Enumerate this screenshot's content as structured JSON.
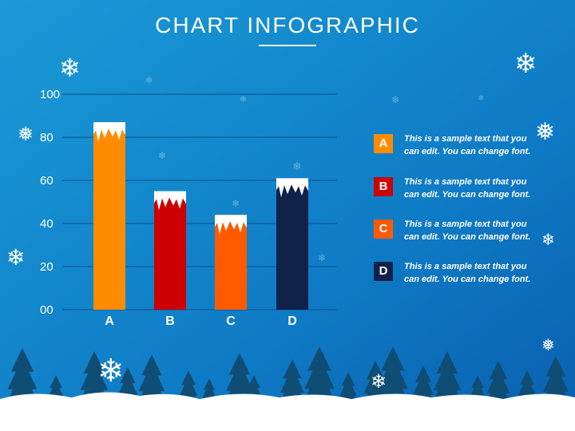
{
  "header": {
    "title": "CHART INFOGRAPHIC"
  },
  "chart_data": {
    "type": "bar",
    "categories": [
      "A",
      "B",
      "C",
      "D"
    ],
    "values": [
      87,
      55,
      44,
      61
    ],
    "colors": [
      "#ff8c00",
      "#cc0000",
      "#ff5a00",
      "#10214a"
    ],
    "ylim": [
      0,
      100
    ],
    "yticks": [
      "00",
      "20",
      "40",
      "60",
      "80",
      "100"
    ],
    "ytick_values": [
      0,
      20,
      40,
      60,
      80,
      100
    ],
    "grid": true,
    "xlabel": "",
    "ylabel": ""
  },
  "legend": [
    {
      "letter": "A",
      "color": "#ff8c00",
      "line1": "This is a sample text that you",
      "line2": "can edit. You can change font."
    },
    {
      "letter": "B",
      "color": "#cc0000",
      "line1": "This is a sample text that you",
      "line2": "can edit. You can change font."
    },
    {
      "letter": "C",
      "color": "#ff5a00",
      "line1": "This is a sample text that you",
      "line2": "can edit. You can change font."
    },
    {
      "letter": "D",
      "color": "#10214a",
      "line1": "This is a sample text that you",
      "line2": "can edit. You can change font."
    }
  ],
  "theme": {
    "background_top": "#0a6fc0",
    "background_bottom": "#1aa6dd",
    "trees": "#0f4d75",
    "snow": "#ffffff",
    "icon": "snowflake-icon"
  }
}
